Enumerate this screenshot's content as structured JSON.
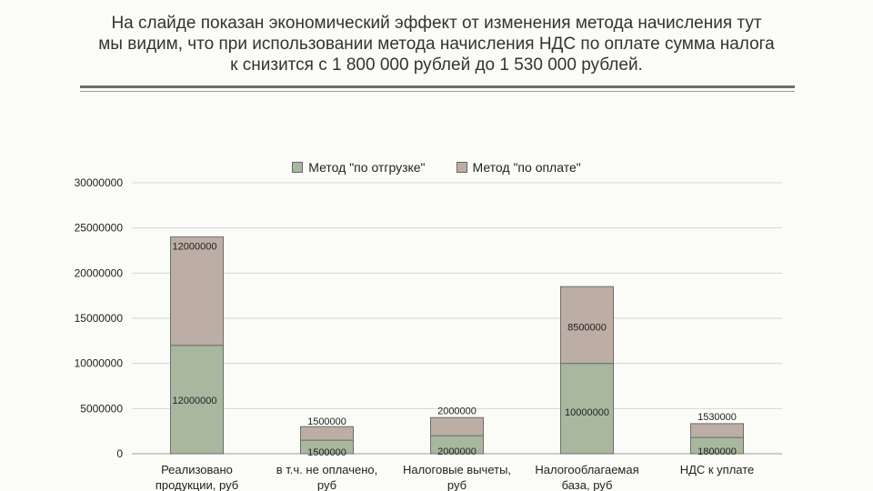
{
  "slide": {
    "title_lines": [
      "На слайде показан экономический эффект от изменения метода начисления тут",
      "мы видим, что при использовании метода начисления НДС по оплате сумма налога",
      "к снизится с 1 800 000 рублей до 1 530 000 рублей."
    ]
  },
  "chart_data": {
    "type": "bar",
    "stacked": true,
    "categories": [
      [
        "Реализовано",
        "продукции, руб"
      ],
      [
        "в т.ч. не оплачено,",
        "руб"
      ],
      [
        "Налоговые вычеты,",
        "руб"
      ],
      [
        "Налогооблагаемая",
        "база, руб"
      ],
      [
        "НДС к уплате"
      ]
    ],
    "series": [
      {
        "name": "Метод \"по отгрузке\"",
        "color": "#a8b89f",
        "values": [
          12000000,
          1500000,
          2000000,
          10000000,
          1800000
        ],
        "labels": [
          "12000000",
          "1500000",
          "2000000",
          "10000000",
          "1800000"
        ]
      },
      {
        "name": "Метод \"по оплате\"",
        "color": "#bdaea5",
        "values": [
          12000000,
          1500000,
          2000000,
          8500000,
          1530000
        ],
        "labels": [
          "12000000",
          "1500000",
          "2000000",
          "8500000",
          "1530000"
        ]
      }
    ],
    "ylim": [
      0,
      30000000
    ],
    "yticks": [
      0,
      5000000,
      10000000,
      15000000,
      20000000,
      25000000,
      30000000
    ],
    "ytick_labels": [
      "0",
      "5000000",
      "10000000",
      "15000000",
      "20000000",
      "25000000",
      "30000000"
    ],
    "grid": true,
    "legend": "top"
  }
}
